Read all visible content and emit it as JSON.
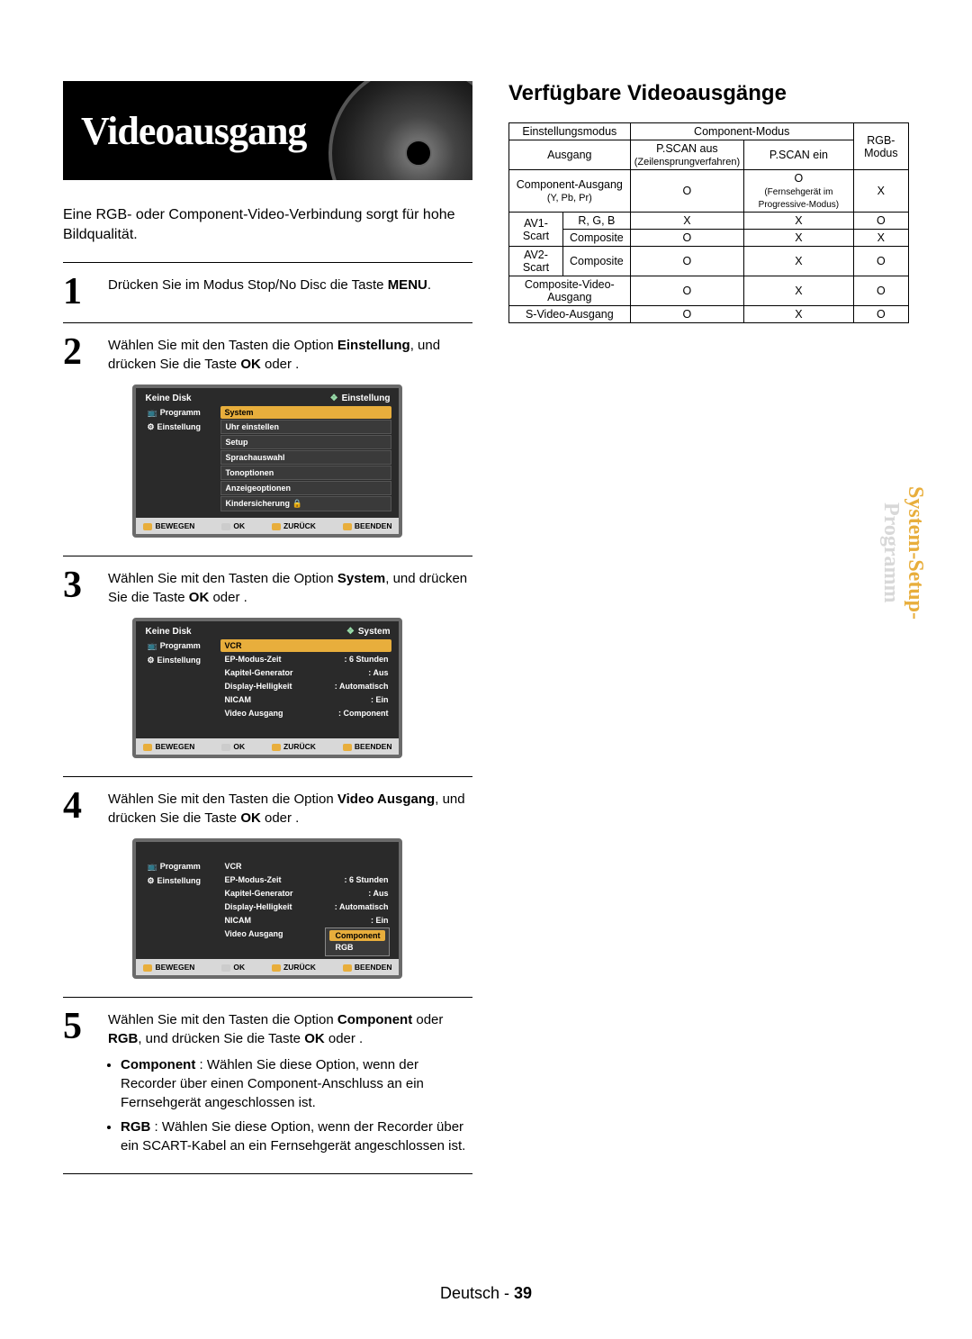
{
  "banner": {
    "title": "Videoausgang"
  },
  "intro": "Eine RGB- oder Component-Video-Verbindung sorgt für hohe Bildqualität.",
  "steps": {
    "s1": {
      "n": "1",
      "text_a": "Drücken Sie im Modus Stop/No Disc die Taste ",
      "bold": "MENU",
      "text_b": "."
    },
    "s2": {
      "n": "2",
      "text_a": "Wählen Sie mit den Tasten       die Option ",
      "bold": "Einstellung",
      "text_b": ", und drücken Sie die Taste ",
      "bold2": "OK",
      "text_c": " oder    ."
    },
    "s3": {
      "n": "3",
      "text_a": "Wählen Sie mit den Tasten       die Option ",
      "bold": "System",
      "text_b": ", und drücken Sie die Taste ",
      "bold2": "OK",
      "text_c": " oder    ."
    },
    "s4": {
      "n": "4",
      "text_a": "Wählen Sie mit den Tasten       die Option ",
      "bold": "Video Ausgang",
      "text_b": ", und drücken Sie die Taste ",
      "bold2": "OK",
      "text_c": " oder    ."
    },
    "s5": {
      "n": "5",
      "text_a": "Wählen Sie mit den Tasten       die Option ",
      "bold": "Component",
      "mid": " oder ",
      "bold1b": "RGB",
      "text_b": ", und drücken Sie die Taste ",
      "bold2": "OK",
      "text_c": " oder    .",
      "bul1_b": "Component",
      "bul1": " : Wählen Sie diese Option, wenn der Recorder über einen Component-Anschluss an ein Fernsehgerät angeschlossen ist.",
      "bul2_b": "RGB",
      "bul2": " : Wählen Sie diese Option, wenn der Recorder über ein SCART-Kabel an ein Fernsehgerät angeschlossen ist."
    }
  },
  "osd_common": {
    "nav1": "Programm",
    "nav2": "Einstellung",
    "foot_move": "BEWEGEN",
    "foot_ok": "OK",
    "foot_back": "ZURÜCK",
    "foot_exit": "BEENDEN"
  },
  "osd1": {
    "head_l": "Keine Disk",
    "head_r": "Einstellung",
    "items": [
      "System",
      "Uhr einstellen",
      "Setup",
      "Sprachauswahl",
      "Tonoptionen",
      "Anzeigeoptionen",
      "Kindersicherung"
    ]
  },
  "osd2": {
    "head_l": "Keine Disk",
    "head_r": "System",
    "items": [
      [
        "VCR",
        ""
      ],
      [
        "EP-Modus-Zeit",
        ": 6 Stunden"
      ],
      [
        "Kapitel-Generator",
        ": Aus"
      ],
      [
        "Display-Helligkeit",
        ": Automatisch"
      ],
      [
        "NICAM",
        ": Ein"
      ],
      [
        "Video Ausgang",
        ": Component"
      ]
    ]
  },
  "osd3": {
    "items": [
      [
        "VCR",
        ""
      ],
      [
        "EP-Modus-Zeit",
        ": 6 Stunden"
      ],
      [
        "Kapitel-Generator",
        ": Aus"
      ],
      [
        "Display-Helligkeit",
        ": Automatisch"
      ],
      [
        "NICAM",
        ": Ein"
      ],
      [
        "Video Ausgang",
        ""
      ]
    ],
    "popup": [
      "Component",
      "RGB"
    ]
  },
  "right": {
    "heading": "Verfügbare Videoausgänge",
    "table": {
      "h_mode": "Einstellungsmodus",
      "h_comp": "Component-Modus",
      "h_rgb": "RGB-Modus",
      "h_out": "Ausgang",
      "h_pscan_off": "P.SCAN aus",
      "h_pscan_off_sub": "(Zeilensprungverfahren)",
      "h_pscan_on": "P.SCAN ein",
      "r1_a": "Component-Ausgang",
      "r1_a_sub": "(Y, Pb, Pr)",
      "r1_b": "O",
      "r1_c": "O",
      "r1_c_sub": "(Fernsehgerät im Progressive-Modus)",
      "r1_d": "X",
      "r2_a": "AV1-Scart",
      "r2_b": "R, G, B",
      "r2_c": "X",
      "r2_d": "X",
      "r2_e": "O",
      "r3_b": "Composite",
      "r3_c": "O",
      "r3_d": "X",
      "r3_e": "X",
      "r4_a": "AV2-Scart",
      "r4_b": "Composite",
      "r4_c": "O",
      "r4_d": "X",
      "r4_e": "O",
      "r5_a": "Composite-Video-Ausgang",
      "r5_c": "O",
      "r5_d": "X",
      "r5_e": "O",
      "r6_a": "S-Video-Ausgang",
      "r6_c": "O",
      "r6_d": "X",
      "r6_e": "O"
    }
  },
  "side_tab": {
    "line1": "System-Setup-",
    "line2": "Programm"
  },
  "footer": {
    "lang": "Deutsch",
    "dash": " - ",
    "page": "39"
  },
  "colors": {
    "accent": "#e8ae3c",
    "osd_bg": "#2a2a2a",
    "osd_border": "#6a6a6a",
    "text": "#000000",
    "bg": "#ffffff",
    "side_gray": "#d8d8d8"
  }
}
